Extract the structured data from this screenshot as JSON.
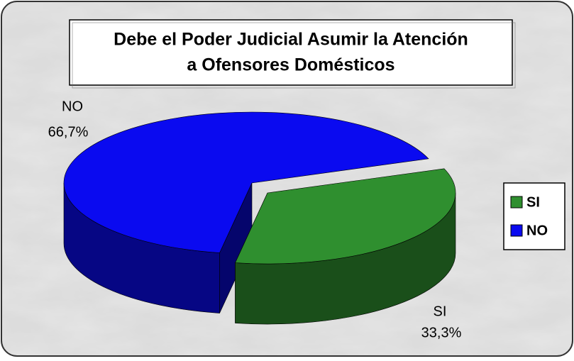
{
  "chart_data": {
    "type": "pie",
    "title": [
      "Debe el Poder Judicial Asumir la Atención",
      "a Ofensores Domésticos"
    ],
    "categories": [
      "SI",
      "NO"
    ],
    "values": [
      33.3,
      66.7
    ],
    "value_labels": [
      "33,3%",
      "66,7%"
    ],
    "colors": [
      "#2f8f2f",
      "#0a0af0"
    ],
    "legend": "right"
  }
}
